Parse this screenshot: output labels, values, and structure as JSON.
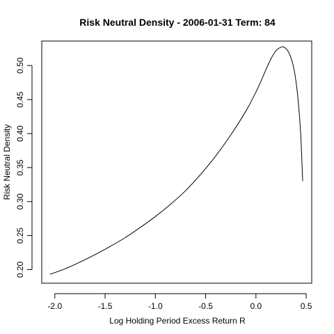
{
  "chart_data": {
    "type": "line",
    "title": "Risk Neutral Density - 2006-01-31 Term: 84",
    "xlabel": "Log Holding Period Excess Return R",
    "ylabel": "Risk Neutral Density",
    "xlim": [
      -2.13,
      0.555
    ],
    "ylim": [
      0.18,
      0.536
    ],
    "x_ticks": [
      -2.0,
      -1.5,
      -1.0,
      -0.5,
      0.0,
      0.5
    ],
    "x_tick_labels": [
      "-2.0",
      "-1.5",
      "-1.0",
      "-0.5",
      "0.0",
      "0.5"
    ],
    "y_ticks": [
      0.2,
      0.25,
      0.3,
      0.35,
      0.4,
      0.45,
      0.5
    ],
    "y_tick_labels": [
      "0.20",
      "0.25",
      "0.30",
      "0.35",
      "0.40",
      "0.45",
      "0.50"
    ],
    "grid": false,
    "series": [
      {
        "x": [
          -2.05,
          -1.9,
          -1.75,
          -1.6,
          -1.45,
          -1.3,
          -1.15,
          -1.0,
          -0.85,
          -0.7,
          -0.55,
          -0.4,
          -0.25,
          -0.1,
          0.0,
          0.05,
          0.1,
          0.15,
          0.2,
          0.25,
          0.28,
          0.32,
          0.36,
          0.39,
          0.42,
          0.445,
          0.465
        ],
        "values": [
          0.193,
          0.201,
          0.211,
          0.222,
          0.234,
          0.247,
          0.262,
          0.278,
          0.296,
          0.316,
          0.34,
          0.367,
          0.398,
          0.433,
          0.461,
          0.477,
          0.494,
          0.51,
          0.522,
          0.527,
          0.527,
          0.521,
          0.506,
          0.485,
          0.449,
          0.4,
          0.33
        ]
      }
    ]
  }
}
